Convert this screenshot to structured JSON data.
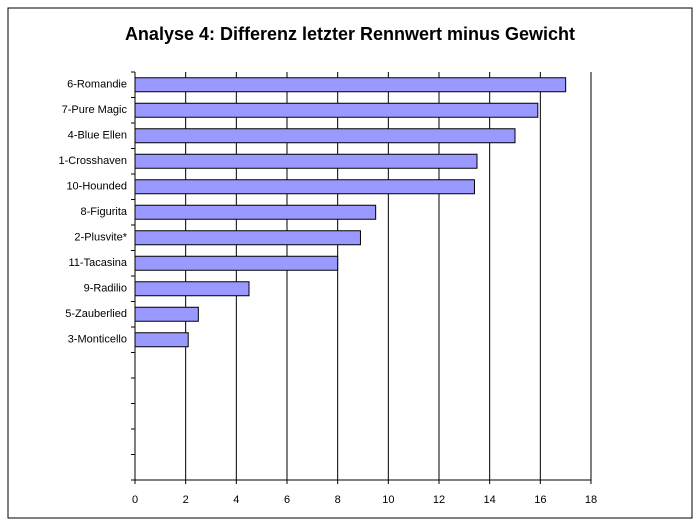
{
  "chart_data": {
    "type": "barh",
    "title": "Analyse 4: Differenz letzter Rennwert minus Gewicht",
    "categories": [
      "6-Romandie",
      "7-Pure Magic",
      "4-Blue Ellen",
      "1-Crosshaven",
      "10-Hounded",
      "8-Figurita",
      "2-Plusvite*",
      "11-Tacasina",
      "9-Radilio",
      "5-Zauberlied",
      "3-Monticello",
      null,
      null,
      null,
      null,
      null
    ],
    "values": [
      17.0,
      15.9,
      15.0,
      13.5,
      13.4,
      9.5,
      8.9,
      8.0,
      4.5,
      2.5,
      2.1,
      null,
      null,
      null,
      null,
      null
    ],
    "color": "#9999ff",
    "xlim": [
      0,
      18
    ],
    "xticks": [
      0,
      2,
      4,
      6,
      8,
      10,
      12,
      14,
      16,
      18
    ],
    "grid": true
  }
}
